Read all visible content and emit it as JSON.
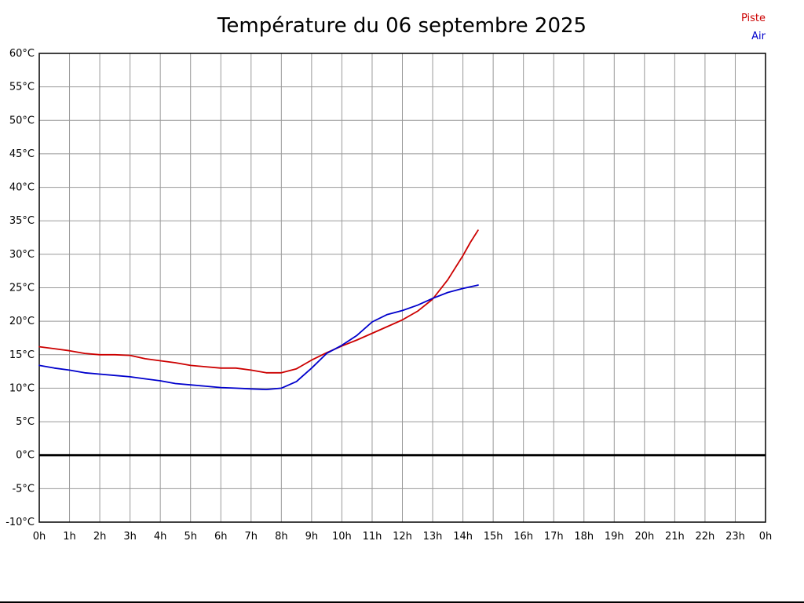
{
  "page": {
    "background": "#ffffff"
  },
  "chart_data": {
    "type": "line",
    "title": "Température du 06 septembre 2025",
    "x_ticks": [
      "0h",
      "1h",
      "2h",
      "3h",
      "4h",
      "5h",
      "6h",
      "7h",
      "8h",
      "9h",
      "10h",
      "11h",
      "12h",
      "13h",
      "14h",
      "15h",
      "16h",
      "17h",
      "18h",
      "19h",
      "20h",
      "21h",
      "22h",
      "23h",
      "0h"
    ],
    "xlim": [
      0,
      24
    ],
    "ylim": [
      -10,
      60
    ],
    "y_tick_step": 5,
    "y_tick_suffix": "°C",
    "grid": true,
    "grid_color": "#999999",
    "border_color": "#000000",
    "zero_line": {
      "value": 0,
      "color": "#000000",
      "width": 3
    },
    "legend_position": "top-right",
    "series": [
      {
        "name": "Piste",
        "color": "#cc0000",
        "points": [
          [
            0,
            16.2
          ],
          [
            0.5,
            15.9
          ],
          [
            1,
            15.6
          ],
          [
            1.5,
            15.2
          ],
          [
            2,
            15.0
          ],
          [
            2.5,
            15.0
          ],
          [
            3,
            14.9
          ],
          [
            3.5,
            14.4
          ],
          [
            4,
            14.1
          ],
          [
            4.5,
            13.8
          ],
          [
            5,
            13.4
          ],
          [
            5.5,
            13.2
          ],
          [
            6,
            13.0
          ],
          [
            6.5,
            13.0
          ],
          [
            7,
            12.7
          ],
          [
            7.5,
            12.3
          ],
          [
            8,
            12.3
          ],
          [
            8.5,
            12.9
          ],
          [
            9,
            14.2
          ],
          [
            9.5,
            15.3
          ],
          [
            10,
            16.3
          ],
          [
            10.5,
            17.2
          ],
          [
            11,
            18.2
          ],
          [
            11.5,
            19.2
          ],
          [
            12,
            20.2
          ],
          [
            12.5,
            21.5
          ],
          [
            13,
            23.3
          ],
          [
            13.5,
            26.2
          ],
          [
            14,
            29.8
          ],
          [
            14.25,
            31.8
          ],
          [
            14.5,
            33.6
          ]
        ]
      },
      {
        "name": "Air",
        "color": "#0000cc",
        "points": [
          [
            0,
            13.4
          ],
          [
            0.5,
            13.0
          ],
          [
            1,
            12.7
          ],
          [
            1.5,
            12.3
          ],
          [
            2,
            12.1
          ],
          [
            2.5,
            11.9
          ],
          [
            3,
            11.7
          ],
          [
            3.5,
            11.4
          ],
          [
            4,
            11.1
          ],
          [
            4.5,
            10.7
          ],
          [
            5,
            10.5
          ],
          [
            5.5,
            10.3
          ],
          [
            6,
            10.1
          ],
          [
            6.5,
            10.0
          ],
          [
            7,
            9.9
          ],
          [
            7.5,
            9.8
          ],
          [
            8,
            10.0
          ],
          [
            8.5,
            11.0
          ],
          [
            9,
            13.0
          ],
          [
            9.5,
            15.2
          ],
          [
            10,
            16.4
          ],
          [
            10.5,
            17.9
          ],
          [
            11,
            19.9
          ],
          [
            11.5,
            21.0
          ],
          [
            12,
            21.6
          ],
          [
            12.5,
            22.4
          ],
          [
            13,
            23.4
          ],
          [
            13.5,
            24.3
          ],
          [
            14,
            24.9
          ],
          [
            14.5,
            25.4
          ]
        ]
      }
    ]
  }
}
